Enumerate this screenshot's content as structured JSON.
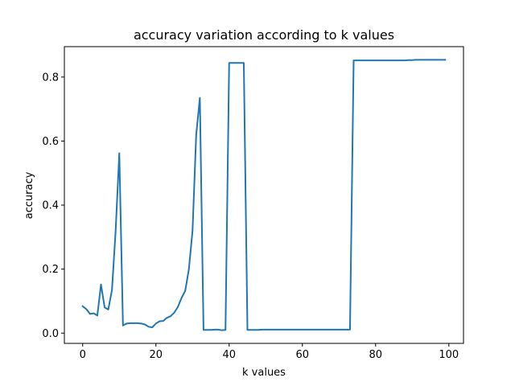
{
  "chart_data": {
    "type": "line",
    "title": "accuracy variation according to k values",
    "xlabel": "k values",
    "ylabel": "accuracy",
    "xlim": [
      -5,
      104
    ],
    "ylim": [
      -0.032,
      0.895
    ],
    "xticks": [
      0,
      20,
      40,
      60,
      80,
      100
    ],
    "yticks": [
      0.0,
      0.2,
      0.4,
      0.6,
      0.8
    ],
    "xtick_labels": [
      "0",
      "20",
      "40",
      "60",
      "80",
      "100"
    ],
    "ytick_labels": [
      "0.0",
      "0.2",
      "0.4",
      "0.6",
      "0.8"
    ],
    "grid": false,
    "legend": false,
    "series": [
      {
        "color": "#1f77b4",
        "x": [
          0,
          1,
          2,
          3,
          4,
          5,
          6,
          7,
          8,
          9,
          10,
          11,
          12,
          13,
          14,
          15,
          16,
          17,
          18,
          19,
          20,
          21,
          22,
          23,
          24,
          25,
          26,
          27,
          28,
          29,
          30,
          31,
          32,
          33,
          34,
          35,
          36,
          37,
          38,
          39,
          40,
          41,
          42,
          43,
          44,
          45,
          46,
          47,
          48,
          49,
          50,
          51,
          52,
          53,
          54,
          55,
          56,
          57,
          58,
          59,
          60,
          61,
          62,
          63,
          64,
          65,
          66,
          67,
          68,
          69,
          70,
          71,
          72,
          73,
          74,
          75,
          76,
          77,
          78,
          79,
          80,
          81,
          82,
          83,
          84,
          85,
          86,
          87,
          88,
          89,
          90,
          91,
          92,
          93,
          94,
          95,
          96,
          97,
          98,
          99
        ],
        "values": [
          0.084,
          0.075,
          0.06,
          0.062,
          0.055,
          0.152,
          0.08,
          0.074,
          0.135,
          0.32,
          0.562,
          0.024,
          0.03,
          0.031,
          0.031,
          0.031,
          0.03,
          0.027,
          0.02,
          0.018,
          0.03,
          0.037,
          0.038,
          0.048,
          0.053,
          0.064,
          0.082,
          0.11,
          0.132,
          0.2,
          0.32,
          0.62,
          0.735,
          0.01,
          0.01,
          0.01,
          0.011,
          0.011,
          0.009,
          0.01,
          0.844,
          0.844,
          0.844,
          0.844,
          0.844,
          0.01,
          0.01,
          0.01,
          0.01,
          0.011,
          0.011,
          0.011,
          0.011,
          0.011,
          0.011,
          0.011,
          0.011,
          0.011,
          0.011,
          0.011,
          0.011,
          0.011,
          0.011,
          0.011,
          0.011,
          0.011,
          0.011,
          0.011,
          0.011,
          0.011,
          0.011,
          0.011,
          0.011,
          0.011,
          0.852,
          0.852,
          0.852,
          0.852,
          0.852,
          0.852,
          0.852,
          0.852,
          0.852,
          0.852,
          0.852,
          0.852,
          0.852,
          0.852,
          0.852,
          0.853,
          0.853,
          0.854,
          0.854,
          0.854,
          0.854,
          0.854,
          0.854,
          0.854,
          0.854,
          0.854
        ]
      }
    ]
  }
}
